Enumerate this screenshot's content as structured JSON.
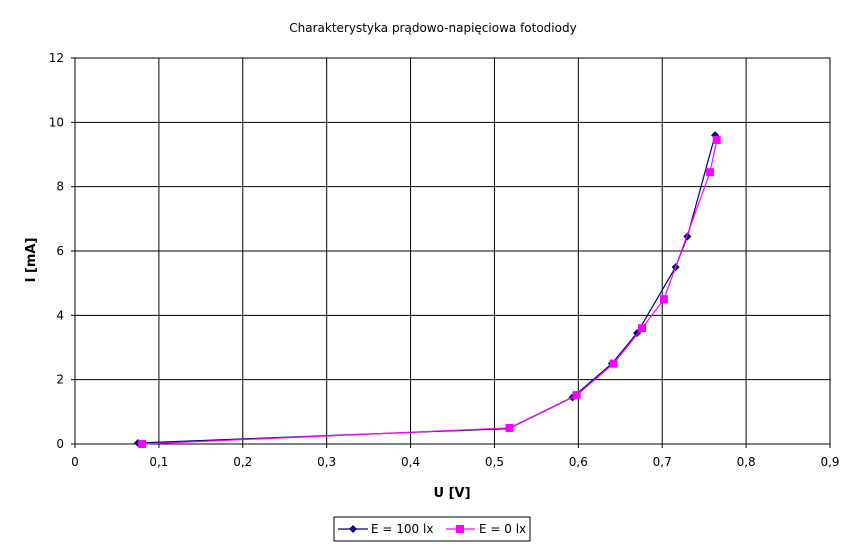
{
  "chart_data": {
    "type": "line",
    "title": "Charakterystyka prądowo-napięciowa fotodiody",
    "xlabel": "U [V]",
    "ylabel": "I [mA]",
    "xlim": [
      0,
      0.9
    ],
    "ylim": [
      0,
      12
    ],
    "x_ticks": [
      "0",
      "0,1",
      "0,2",
      "0,3",
      "0,4",
      "0,5",
      "0,6",
      "0,7",
      "0,8",
      "0,9"
    ],
    "y_ticks": [
      "0",
      "2",
      "4",
      "6",
      "8",
      "10",
      "12"
    ],
    "grid": true,
    "legend_position": "bottom",
    "series": [
      {
        "name": "E = 100 lx",
        "color": "#000080",
        "marker": "diamond",
        "points": [
          [
            0.075,
            0.03
          ],
          [
            0.517,
            0.48
          ],
          [
            0.593,
            1.45
          ],
          [
            0.64,
            2.5
          ],
          [
            0.67,
            3.45
          ],
          [
            0.716,
            5.5
          ],
          [
            0.73,
            6.45
          ],
          [
            0.763,
            9.6
          ]
        ]
      },
      {
        "name": "E = 0 lx",
        "color": "#ff00ff",
        "marker": "square",
        "points": [
          [
            0.08,
            0.0
          ],
          [
            0.518,
            0.5
          ],
          [
            0.598,
            1.52
          ],
          [
            0.642,
            2.5
          ],
          [
            0.676,
            3.6
          ],
          [
            0.702,
            4.5
          ],
          [
            0.757,
            8.45
          ],
          [
            0.765,
            9.45
          ]
        ]
      }
    ]
  }
}
